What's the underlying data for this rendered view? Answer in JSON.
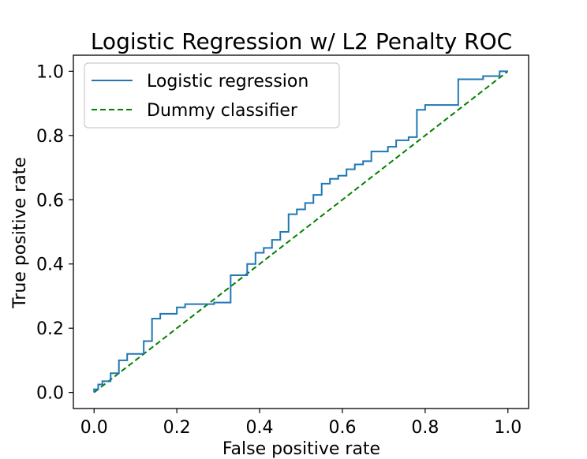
{
  "chart_data": {
    "type": "line",
    "title": "Logistic Regression w/ L2 Penalty ROC",
    "xlabel": "False positive rate",
    "ylabel": "True positive rate",
    "xlim": [
      -0.05,
      1.05
    ],
    "ylim": [
      -0.05,
      1.05
    ],
    "xticks": [
      "0.0",
      "0.2",
      "0.4",
      "0.6",
      "0.8",
      "1.0"
    ],
    "yticks": [
      "0.0",
      "0.2",
      "0.4",
      "0.6",
      "0.8",
      "1.0"
    ],
    "grid": false,
    "legend_position": "top-left",
    "series": [
      {
        "name": "Logistic regression",
        "style": "solid-step",
        "color": "#1f77b4",
        "x": [
          0.0,
          0.0,
          0.01,
          0.01,
          0.02,
          0.02,
          0.04,
          0.04,
          0.06,
          0.06,
          0.08,
          0.08,
          0.12,
          0.12,
          0.14,
          0.14,
          0.16,
          0.16,
          0.2,
          0.2,
          0.22,
          0.22,
          0.29,
          0.29,
          0.33,
          0.33,
          0.37,
          0.37,
          0.39,
          0.39,
          0.41,
          0.41,
          0.43,
          0.43,
          0.45,
          0.45,
          0.47,
          0.47,
          0.49,
          0.49,
          0.51,
          0.51,
          0.53,
          0.53,
          0.55,
          0.55,
          0.57,
          0.57,
          0.59,
          0.59,
          0.61,
          0.61,
          0.63,
          0.63,
          0.65,
          0.65,
          0.67,
          0.67,
          0.71,
          0.71,
          0.73,
          0.73,
          0.76,
          0.76,
          0.78,
          0.78,
          0.8,
          0.8,
          0.88,
          0.88,
          0.94,
          0.94,
          0.98,
          0.98,
          1.0,
          1.0
        ],
        "y": [
          0.0,
          0.01,
          0.01,
          0.025,
          0.025,
          0.035,
          0.035,
          0.06,
          0.06,
          0.1,
          0.1,
          0.12,
          0.12,
          0.16,
          0.16,
          0.23,
          0.23,
          0.245,
          0.245,
          0.265,
          0.265,
          0.275,
          0.275,
          0.28,
          0.28,
          0.365,
          0.365,
          0.4,
          0.4,
          0.435,
          0.435,
          0.45,
          0.45,
          0.475,
          0.475,
          0.5,
          0.5,
          0.555,
          0.555,
          0.57,
          0.57,
          0.59,
          0.59,
          0.615,
          0.615,
          0.65,
          0.65,
          0.665,
          0.665,
          0.675,
          0.675,
          0.695,
          0.695,
          0.71,
          0.71,
          0.72,
          0.72,
          0.75,
          0.75,
          0.765,
          0.765,
          0.785,
          0.785,
          0.795,
          0.795,
          0.88,
          0.88,
          0.895,
          0.895,
          0.975,
          0.975,
          0.985,
          0.985,
          1.0,
          1.0,
          1.0
        ]
      },
      {
        "name": "Dummy classifier",
        "style": "dashed",
        "color": "#008000",
        "x": [
          0.0,
          1.0
        ],
        "y": [
          0.0,
          1.0
        ]
      }
    ]
  }
}
